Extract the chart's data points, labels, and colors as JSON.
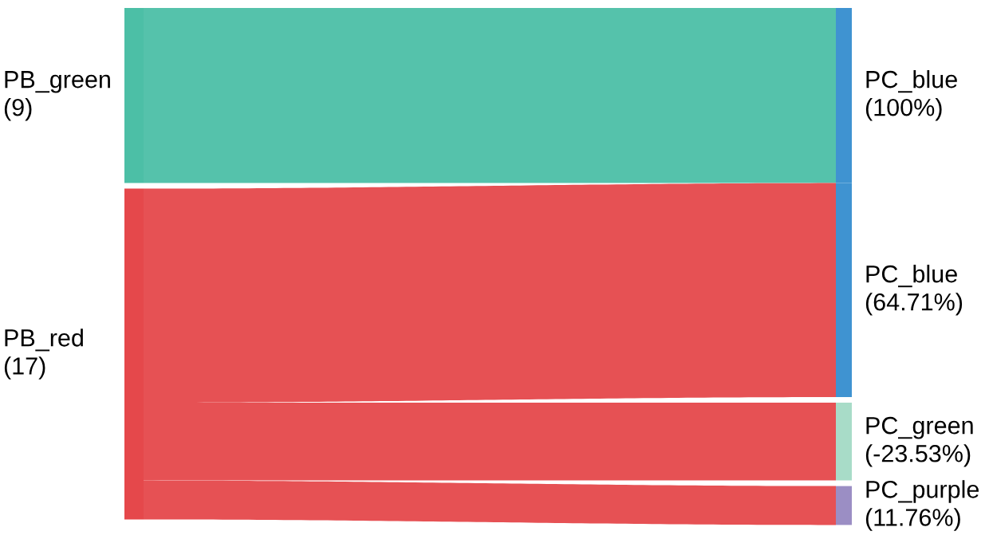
{
  "chart_data": {
    "type": "other",
    "categories": [
      "PB_green",
      "PB_red"
    ],
    "values": [
      9,
      17
    ],
    "value_labels": [
      "(9)",
      "(17)"
    ],
    "colors": [
      "#4cbfa6",
      "#e5484b"
    ],
    "series": [
      {
        "name": "PC_blue",
        "colors": [
          "#3f93d1",
          null
        ],
        "values": [
          100,
          null
        ],
        "value_labels": [
          "(100%)",
          null
        ]
      },
      {
        "name": "PC_blue",
        "colors": [
          null,
          "#3f93d1"
        ],
        "values": [
          null,
          64.71
        ],
        "value_labels": [
          null,
          "(64.71%)"
        ]
      },
      {
        "name": "PC_green",
        "colors": [
          null,
          "#a8dcc8"
        ],
        "values": [
          null,
          -23.53
        ],
        "value_labels": [
          null,
          "(-23.53%)"
        ]
      },
      {
        "name": "PC_purple",
        "colors": [
          null,
          "#9b8ec4"
        ],
        "values": [
          null,
          11.76
        ],
        "value_labels": [
          null,
          "(11.76%)"
        ]
      }
    ]
  }
}
